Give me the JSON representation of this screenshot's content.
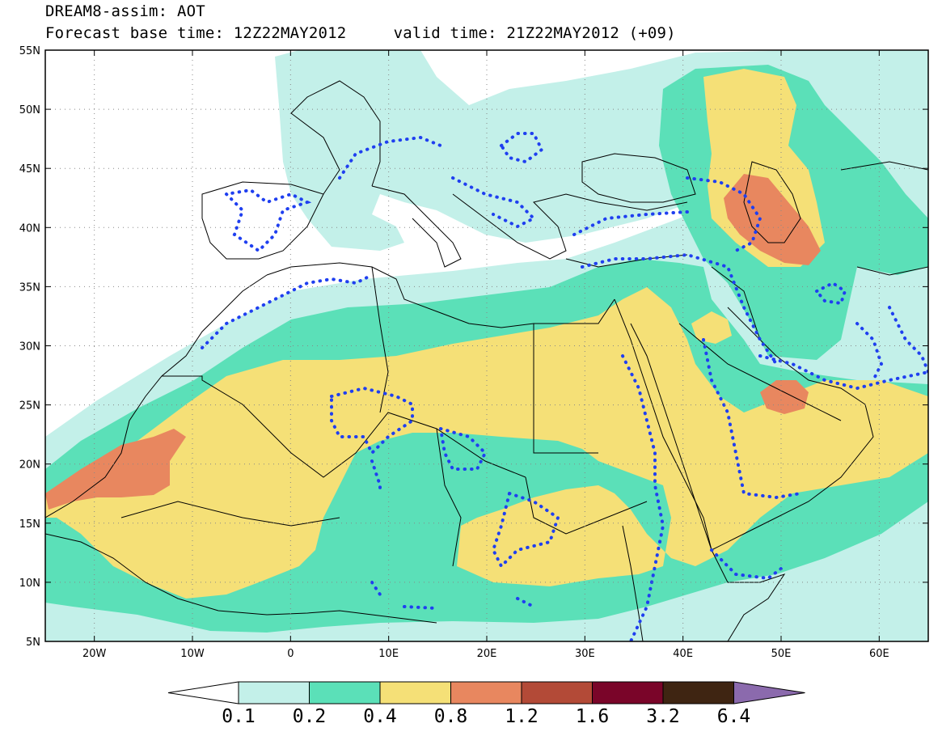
{
  "title": {
    "line1": "DREAM8-assim: AOT",
    "base_time_label": "Forecast base time: 12Z22MAY2012",
    "valid_time_label": "valid time: 21Z22MAY2012 (+09)"
  },
  "map": {
    "lon_range": [
      -25,
      65
    ],
    "lat_range": [
      5,
      55
    ],
    "lat_ticks": [
      {
        "value": 55,
        "label": "55N"
      },
      {
        "value": 50,
        "label": "50N"
      },
      {
        "value": 45,
        "label": "45N"
      },
      {
        "value": 40,
        "label": "40N"
      },
      {
        "value": 35,
        "label": "35N"
      },
      {
        "value": 30,
        "label": "30N"
      },
      {
        "value": 25,
        "label": "25N"
      },
      {
        "value": 20,
        "label": "20N"
      },
      {
        "value": 15,
        "label": "15N"
      },
      {
        "value": 10,
        "label": "10N"
      },
      {
        "value": 5,
        "label": "5N"
      }
    ],
    "lon_ticks": [
      {
        "value": -20,
        "label": "20W"
      },
      {
        "value": -10,
        "label": "10W"
      },
      {
        "value": 0,
        "label": "0"
      },
      {
        "value": 10,
        "label": "10E"
      },
      {
        "value": 20,
        "label": "20E"
      },
      {
        "value": 30,
        "label": "30E"
      },
      {
        "value": 40,
        "label": "40E"
      },
      {
        "value": 50,
        "label": "50E"
      },
      {
        "value": 60,
        "label": "60E"
      }
    ],
    "gridlines": true,
    "field": "AOT"
  },
  "colorbar": {
    "levels": [
      "0.1",
      "0.2",
      "0.4",
      "0.8",
      "1.2",
      "1.6",
      "3.2",
      "6.4"
    ],
    "colors": [
      "#ffffff",
      "#c3f0e9",
      "#5be0b8",
      "#f5e077",
      "#e8875f",
      "#b34a37",
      "#7a0529",
      "#3f2512",
      "#8b6aad"
    ]
  },
  "colors": {
    "lightcyan": "#c3f0e9",
    "green": "#5be0b8",
    "yellow": "#f5e077",
    "orange": "#e8875f",
    "contour": "#1f3ff0"
  }
}
